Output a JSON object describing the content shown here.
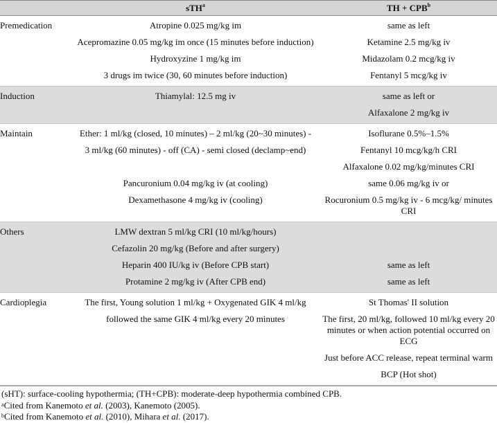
{
  "table": {
    "columns": [
      {
        "text": "sTH",
        "mark": "a"
      },
      {
        "text": "TH + CPB",
        "mark": "b"
      }
    ],
    "rows": [
      {
        "label": "Premedication",
        "left": [
          "Atropine 0.025 mg/kg im",
          "Acepromazine 0.05 mg/kg im once (15 minutes before induction)",
          "Hydroxyzine 1 mg/kg im",
          "3 drugs im twice (30, 60 minutes before induction)"
        ],
        "right": [
          "same as left",
          "Ketamine 2.5 mg/kg iv",
          "Midazolam 0.2 mcg/kg iv",
          "Fentanyl 5 mcg/kg iv"
        ],
        "shade": false
      },
      {
        "label": "Induction",
        "left": [
          "Thiamylal: 12.5 mg iv"
        ],
        "right": [
          "same as left or",
          "Alfaxalone 2 mg/kg iv"
        ],
        "shade": true
      },
      {
        "label": "Maintain",
        "left": [
          "Ether: 1 ml/kg (closed, 10 minutes) – 2 ml/kg (20~30 minutes) -",
          "3 ml/kg (60 minutes) - off (CA) - semi closed (declamp~end)",
          null,
          "Pancuronium 0.04 mg/kg iv (at cooling)",
          "Dexamethasone 4 mg/kg iv (cooling)"
        ],
        "right": [
          "Isoflurane 0.5%–1.5%",
          "Fentanyl 10 mcg/kg/h CRI",
          "Alfaxalone 0.02 mg/kg/minutes CRI",
          "same 0.06 mg/kg iv or",
          "Rocuronium 0.5 mg/kg iv - 6 mcg/kg/ minutes CRI"
        ],
        "shade": false
      },
      {
        "label": "Others",
        "left": [
          "LMW dextran 5 ml/kg CRI (10 ml/kg/hours)",
          "Cefazolin 20 mg/kg (Before and after surgery)",
          "Heparin 400 IU/kg iv (Before CPB start)",
          "Protamine 2 mg/kg iv (After CPB end)"
        ],
        "right": [
          null,
          null,
          "same as left",
          "same as left"
        ],
        "shade": true
      },
      {
        "label": "Cardioplegia",
        "left": [
          "The first, Young solution 1 ml/kg + Oxygenated GIK 4 ml/kg",
          "followed the same GIK 4 ml/kg every 20 minutes"
        ],
        "right": [
          "St Thomas' II solution",
          "The first, 20 ml/kg, followed 10 ml/kg every 20 minutes or when action potential occurred on ECG",
          "Just before ACC release, repeat terminal warm",
          "BCP (Hot shot)"
        ],
        "shade": false
      }
    ]
  },
  "notes": [
    {
      "parts": [
        {
          "text": "(sHT): surface-cooling hypothermia; (TH+CPB): moderate-deep hypothermia combined CPB."
        }
      ]
    },
    {
      "parts": [
        {
          "sup": "a"
        },
        {
          "text": "Cited from Kanemoto "
        },
        {
          "italic": "et al."
        },
        {
          "text": " (2003), Kanemoto (2005)."
        }
      ]
    },
    {
      "parts": [
        {
          "sup": "b"
        },
        {
          "text": "Cited from Kanemoto "
        },
        {
          "italic": "et al."
        },
        {
          "text": " (2010), Mihara "
        },
        {
          "italic": "et al."
        },
        {
          "text": " (2017)."
        }
      ]
    }
  ]
}
